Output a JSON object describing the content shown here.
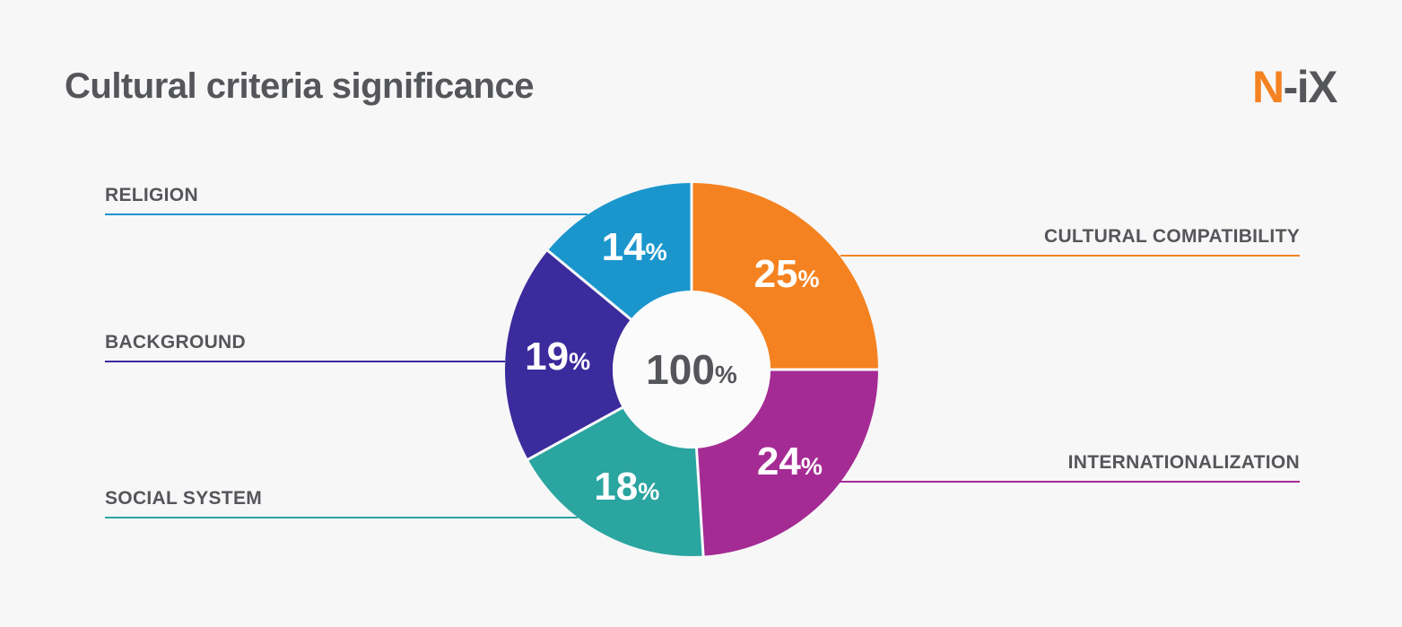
{
  "page": {
    "background": "#F7F7F8",
    "hole_color": "#FBFBFC"
  },
  "header": {
    "title": "Cultural criteria significance",
    "logo": {
      "prefix": "N",
      "suffix": "-iX",
      "prefix_color": "#F58220",
      "suffix_color": "#55565A"
    }
  },
  "chart_data": {
    "type": "pie",
    "subtype": "donut",
    "title": "Cultural criteria significance",
    "direction": "clockwise",
    "start_angle_deg": 0,
    "total": 100,
    "center_label": {
      "value": "100",
      "suffix": "%"
    },
    "value_suffix": "%",
    "label_color": "#55565A",
    "value_label_color": "#FFFFFF",
    "segments": [
      {
        "label": "CULTURAL COMPATIBILITY",
        "value": 25,
        "color": "#F58220",
        "side": "right"
      },
      {
        "label": "INTERNATIONALIZATION",
        "value": 24,
        "color": "#A52B94",
        "side": "right"
      },
      {
        "label": "SOCIAL SYSTEM",
        "value": 18,
        "color": "#2AA5A0",
        "side": "left"
      },
      {
        "label": "BACKGROUND",
        "value": 19,
        "color": "#3B2B9C",
        "side": "left"
      },
      {
        "label": "RELIGION",
        "value": 14,
        "color": "#1B96CD",
        "side": "left"
      }
    ]
  }
}
